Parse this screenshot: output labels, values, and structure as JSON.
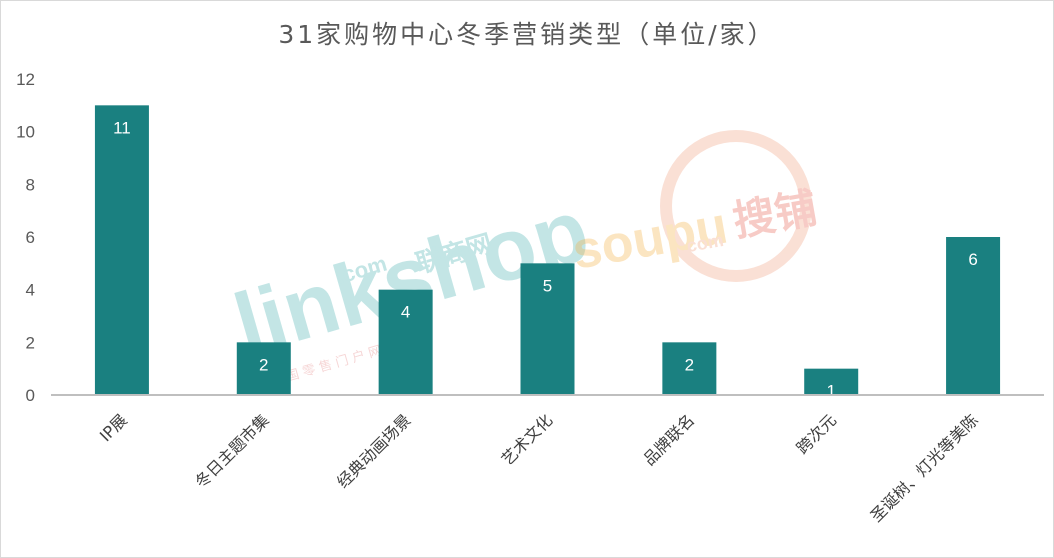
{
  "chart_data": {
    "type": "bar",
    "title": "31家购物中心冬季营销类型（单位/家）",
    "categories": [
      "IP展",
      "冬日主题市集",
      "经典动画场景",
      "艺术文化",
      "品牌联名",
      "跨次元",
      "圣诞树、灯光等美陈"
    ],
    "values": [
      11,
      2,
      4,
      5,
      2,
      1,
      6
    ],
    "ylim": [
      0,
      12
    ],
    "yticks": [
      0,
      2,
      4,
      6,
      8,
      10,
      12
    ],
    "grid": false,
    "legend": "none",
    "bar_color": "#1a8080",
    "data_labels": true
  },
  "watermarks": {
    "linkshop_text": "linkshop",
    "linkshop_com": ".com",
    "linkshop_cn": "联商网",
    "linkshop_sub": "中 国 零 售 门 户 网 站",
    "soupu_text": "soupu",
    "soupu_com": ".com",
    "soupu_cn": "搜铺"
  }
}
